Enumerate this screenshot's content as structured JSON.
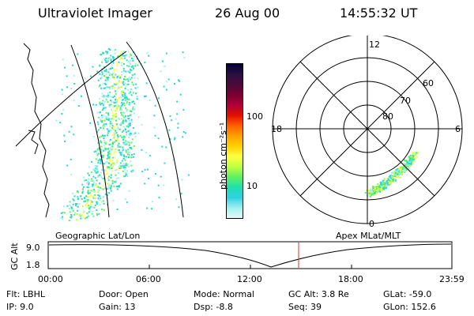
{
  "header": {
    "title": "Ultraviolet Imager",
    "date": "26 Aug 00",
    "time": "14:55:32 UT"
  },
  "geo_panel": {
    "label": "Geographic Lat/Lon"
  },
  "colorbar": {
    "unit_label": "photon cm⁻²s⁻¹",
    "tick_labels": [
      "100",
      "10"
    ],
    "colors": [
      "#000033",
      "#2a1040",
      "#4a0a3a",
      "#7a0030",
      "#b0003a",
      "#e01000",
      "#ff6000",
      "#ffa000",
      "#ffd000",
      "#ffff40",
      "#c0ff40",
      "#60f060",
      "#20e0b0",
      "#30d0e0",
      "#a0f0f0",
      "#e8f8f8"
    ]
  },
  "polar_panel": {
    "label": "Apex MLat/MLT",
    "mlt_labels": [
      "12",
      "18",
      "6",
      "0"
    ],
    "lat_labels": [
      "60",
      "70",
      "80"
    ]
  },
  "timeline": {
    "ylabel": "GC Alt",
    "y_ticks": [
      "9.0",
      "1.8"
    ],
    "x_ticks": [
      "00:00",
      "06:00",
      "12:00",
      "18:00",
      "23:59"
    ],
    "marker_color": "#d03030"
  },
  "info": {
    "row1": [
      {
        "key": "Flt:",
        "value": "LBHL"
      },
      {
        "key": "Door:",
        "value": "Open"
      },
      {
        "key": "Mode:",
        "value": "Normal"
      },
      {
        "key": "GC Alt:",
        "value": "3.8 Re"
      },
      {
        "key": "GLat:",
        "value": "-59.0"
      }
    ],
    "row2": [
      {
        "key": "IP:",
        "value": "9.0"
      },
      {
        "key": "Gain:",
        "value": "13"
      },
      {
        "key": "Dsp:",
        "value": "-8.8"
      },
      {
        "key": "Seq:",
        "value": "39"
      },
      {
        "key": "GLon:",
        "value": "152.6"
      }
    ]
  }
}
